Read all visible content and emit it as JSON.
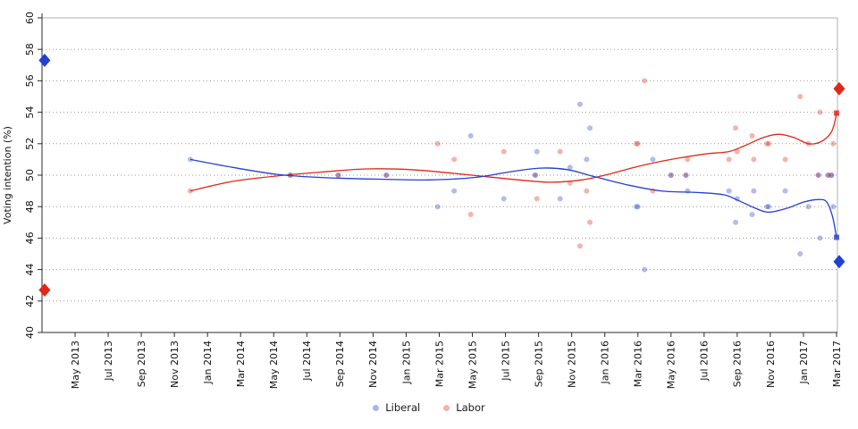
{
  "chart_data": {
    "type": "scatter",
    "title": "",
    "xlabel": "",
    "ylabel": "Voting intention (%)",
    "ylim": [
      40,
      60
    ],
    "yticks": [
      40,
      42,
      44,
      46,
      48,
      50,
      52,
      54,
      56,
      58,
      60
    ],
    "xticks": [
      "May 2013",
      "Jul 2013",
      "Sep 2013",
      "Nov 2013",
      "Jan 2014",
      "Mar 2014",
      "May 2014",
      "Jul 2014",
      "Sep 2014",
      "Nov 2014",
      "Jan 2015",
      "Mar 2015",
      "May 2015",
      "Jul 2015",
      "Sep 2015",
      "Nov 2015",
      "Jan 2016",
      "Mar 2016",
      "May 2016",
      "Jul 2016",
      "Sep 2016",
      "Nov 2016",
      "Jan 2017",
      "Mar 2017"
    ],
    "grid": "dotted horizontal at every 2 points",
    "legend_position": "bottom center",
    "legend": [
      {
        "label": "Liberal",
        "color": "#aab4ec"
      },
      {
        "label": "Labor",
        "color": "#f4b3ad"
      }
    ],
    "series_colors": {
      "liberal": "#2440d0",
      "labor": "#e02818"
    },
    "polls": [
      {
        "date": "Dec 2013",
        "t": 6.96,
        "liberal": 51,
        "labor": 49
      },
      {
        "date": "Jun 2014",
        "t": 13.0,
        "liberal": 50,
        "labor": 50
      },
      {
        "date": "Sep 2014",
        "t": 15.9,
        "liberal": 50,
        "labor": 50
      },
      {
        "date": "Dec 2014",
        "t": 18.8,
        "liberal": 50,
        "labor": 50
      },
      {
        "date": "Mar 2015",
        "t": 21.9,
        "liberal": 48,
        "labor": 52
      },
      {
        "date": "Apr 2015",
        "t": 22.9,
        "liberal": 49,
        "labor": 51
      },
      {
        "date": "May 2015",
        "t": 23.9,
        "liberal": 52.5,
        "labor": 47.5
      },
      {
        "date": "Jul 2015",
        "t": 25.9,
        "liberal": 48.5,
        "labor": 51.5
      },
      {
        "date": "Sep 2015",
        "t": 27.8,
        "liberal": 50,
        "labor": 50
      },
      {
        "date": "Sep 2015",
        "t": 27.9,
        "liberal": 51.5,
        "labor": 48.5
      },
      {
        "date": "Oct 2015",
        "t": 29.3,
        "liberal": 48.5,
        "labor": 51.5
      },
      {
        "date": "Nov 2015",
        "t": 29.9,
        "liberal": 50.5,
        "labor": 49.5
      },
      {
        "date": "Nov 2015",
        "t": 30.5,
        "liberal": 54.5,
        "labor": 45.5
      },
      {
        "date": "Nov 2015",
        "t": 30.9,
        "liberal": 51,
        "labor": 49
      },
      {
        "date": "Dec 2015",
        "t": 31.1,
        "liberal": 53,
        "labor": 47
      },
      {
        "date": "Mar 2016",
        "t": 33.9,
        "liberal": 48,
        "labor": 52
      },
      {
        "date": "Mar 2016",
        "t": 34.0,
        "liberal": 48,
        "labor": 52
      },
      {
        "date": "Apr 2016",
        "t": 34.4,
        "liberal": 44,
        "labor": 56
      },
      {
        "date": "Apr 2016",
        "t": 34.9,
        "liberal": 51,
        "labor": 49
      },
      {
        "date": "May 2016",
        "t": 36.0,
        "liberal": 50,
        "labor": 50
      },
      {
        "date": "Jun 2016",
        "t": 36.9,
        "liberal": 50,
        "labor": 50
      },
      {
        "date": "Jun 2016",
        "t": 37.0,
        "liberal": 49,
        "labor": 51
      },
      {
        "date": "Aug 2016",
        "t": 39.5,
        "liberal": 49,
        "labor": 51
      },
      {
        "date": "Sep 2016",
        "t": 39.9,
        "liberal": 47,
        "labor": 53
      },
      {
        "date": "Sep 2016",
        "t": 40.0,
        "liberal": 48.5,
        "labor": 51.5
      },
      {
        "date": "Oct 2016",
        "t": 40.9,
        "liberal": 47.5,
        "labor": 52.5
      },
      {
        "date": "Oct 2016",
        "t": 41.0,
        "liberal": 49,
        "labor": 51
      },
      {
        "date": "Nov 2016",
        "t": 41.8,
        "liberal": 48,
        "labor": 52
      },
      {
        "date": "Nov 2016",
        "t": 41.9,
        "liberal": 48,
        "labor": 52
      },
      {
        "date": "Dec 2016",
        "t": 42.9,
        "liberal": 49,
        "labor": 51
      },
      {
        "date": "Jan 2017",
        "t": 43.8,
        "liberal": 45,
        "labor": 55
      },
      {
        "date": "Feb 2017",
        "t": 44.3,
        "liberal": 48,
        "labor": 52
      },
      {
        "date": "Feb 2017",
        "t": 44.9,
        "liberal": 50,
        "labor": 50
      },
      {
        "date": "Feb 2017",
        "t": 45.0,
        "liberal": 46,
        "labor": 54
      },
      {
        "date": "Feb 2017",
        "t": 45.5,
        "liberal": 50,
        "labor": 50
      },
      {
        "date": "Mar 2017",
        "t": 45.7,
        "liberal": 50,
        "labor": 50
      },
      {
        "date": "Mar 2017",
        "t": 45.8,
        "liberal": 48,
        "labor": 52
      }
    ],
    "elections": [
      {
        "date": "Mar 2013",
        "t": -1.84,
        "liberal": 57.3,
        "labor": 42.7
      },
      {
        "date": "Mar 2017",
        "t": 46.16,
        "liberal": 44.5,
        "labor": 55.5
      }
    ],
    "trend_liberal": [
      [
        6.96,
        51.0
      ],
      [
        9.5,
        50.5
      ],
      [
        12.2,
        50.05
      ],
      [
        14.9,
        49.85
      ],
      [
        18.1,
        49.75
      ],
      [
        21.4,
        49.7
      ],
      [
        24.1,
        49.85
      ],
      [
        26.2,
        50.2
      ],
      [
        28.1,
        50.45
      ],
      [
        29.75,
        50.35
      ],
      [
        31.4,
        49.9
      ],
      [
        33.3,
        49.4
      ],
      [
        35.4,
        49.0
      ],
      [
        37.6,
        48.9
      ],
      [
        39.2,
        48.75
      ],
      [
        40.05,
        48.4
      ],
      [
        41.1,
        47.9
      ],
      [
        41.9,
        47.65
      ],
      [
        43.0,
        47.9
      ],
      [
        44.05,
        48.3
      ],
      [
        44.9,
        48.45
      ],
      [
        45.4,
        48.3
      ],
      [
        45.75,
        47.4
      ],
      [
        46.0,
        46.05
      ]
    ],
    "trend_labor": [
      [
        6.96,
        49.0
      ],
      [
        9.5,
        49.6
      ],
      [
        12.2,
        49.95
      ],
      [
        14.9,
        50.2
      ],
      [
        17.6,
        50.4
      ],
      [
        20.3,
        50.35
      ],
      [
        23.0,
        50.1
      ],
      [
        24.9,
        49.9
      ],
      [
        26.8,
        49.7
      ],
      [
        28.7,
        49.55
      ],
      [
        30.6,
        49.7
      ],
      [
        32.2,
        50.05
      ],
      [
        34.0,
        50.55
      ],
      [
        36.0,
        51.0
      ],
      [
        38.1,
        51.35
      ],
      [
        39.5,
        51.5
      ],
      [
        40.5,
        51.9
      ],
      [
        41.6,
        52.4
      ],
      [
        42.5,
        52.6
      ],
      [
        43.4,
        52.4
      ],
      [
        44.3,
        52.0
      ],
      [
        45.0,
        52.1
      ],
      [
        45.6,
        52.6
      ],
      [
        45.85,
        53.2
      ],
      [
        46.0,
        53.95
      ]
    ]
  },
  "ylabel": "Voting intention (%)",
  "legend": {
    "liberal": "Liberal",
    "labor": "Labor"
  }
}
